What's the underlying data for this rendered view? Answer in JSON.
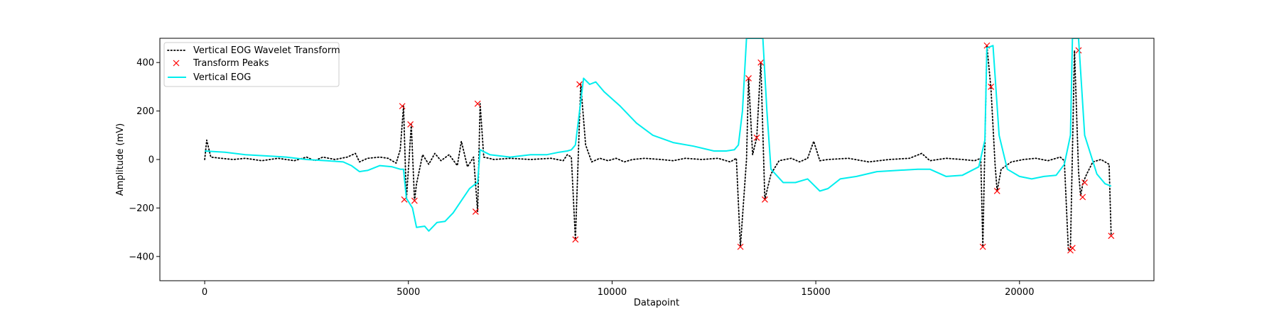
{
  "chart_data": {
    "type": "line",
    "xlabel": "Datapoint",
    "ylabel": "Amplitude (mV)",
    "xlim": [
      -1100,
      23300
    ],
    "ylim": [
      -500,
      500
    ],
    "x_ticks": [
      0,
      5000,
      10000,
      15000,
      20000
    ],
    "y_ticks": [
      -400,
      -200,
      0,
      200,
      400
    ],
    "grid": false,
    "legend_position": "upper-left",
    "series": [
      {
        "name": "Vertical EOG Wavelet Transform",
        "style": "dotted",
        "color": "#000000",
        "points": [
          [
            0,
            0
          ],
          [
            50,
            80
          ],
          [
            150,
            10
          ],
          [
            400,
            5
          ],
          [
            700,
            0
          ],
          [
            1000,
            5
          ],
          [
            1400,
            -5
          ],
          [
            1800,
            5
          ],
          [
            2200,
            -5
          ],
          [
            2500,
            10
          ],
          [
            2700,
            -5
          ],
          [
            2900,
            10
          ],
          [
            3200,
            0
          ],
          [
            3500,
            10
          ],
          [
            3700,
            25
          ],
          [
            3800,
            -10
          ],
          [
            4000,
            5
          ],
          [
            4300,
            10
          ],
          [
            4500,
            5
          ],
          [
            4700,
            -15
          ],
          [
            4800,
            40
          ],
          [
            4880,
            220
          ],
          [
            4950,
            -165
          ],
          [
            5020,
            10
          ],
          [
            5070,
            145
          ],
          [
            5150,
            -170
          ],
          [
            5200,
            -100
          ],
          [
            5350,
            20
          ],
          [
            5500,
            -20
          ],
          [
            5650,
            25
          ],
          [
            5800,
            -5
          ],
          [
            6000,
            20
          ],
          [
            6200,
            -25
          ],
          [
            6300,
            75
          ],
          [
            6450,
            -30
          ],
          [
            6600,
            10
          ],
          [
            6700,
            -215
          ],
          [
            6760,
            230
          ],
          [
            6850,
            10
          ],
          [
            7100,
            0
          ],
          [
            7500,
            5
          ],
          [
            8000,
            0
          ],
          [
            8500,
            5
          ],
          [
            8800,
            -5
          ],
          [
            8900,
            20
          ],
          [
            9000,
            10
          ],
          [
            9100,
            -330
          ],
          [
            9230,
            310
          ],
          [
            9350,
            60
          ],
          [
            9500,
            -10
          ],
          [
            9700,
            5
          ],
          [
            9900,
            -5
          ],
          [
            10100,
            5
          ],
          [
            10300,
            -10
          ],
          [
            10500,
            0
          ],
          [
            10800,
            5
          ],
          [
            11200,
            0
          ],
          [
            11500,
            -5
          ],
          [
            11800,
            5
          ],
          [
            12200,
            0
          ],
          [
            12600,
            5
          ],
          [
            12900,
            -10
          ],
          [
            13050,
            5
          ],
          [
            13150,
            -360
          ],
          [
            13300,
            0
          ],
          [
            13350,
            335
          ],
          [
            13450,
            20
          ],
          [
            13550,
            90
          ],
          [
            13650,
            400
          ],
          [
            13750,
            -165
          ],
          [
            13900,
            -60
          ],
          [
            14100,
            -5
          ],
          [
            14400,
            5
          ],
          [
            14600,
            -10
          ],
          [
            14800,
            5
          ],
          [
            14950,
            75
          ],
          [
            15100,
            -5
          ],
          [
            15300,
            0
          ],
          [
            15800,
            5
          ],
          [
            16300,
            -10
          ],
          [
            16800,
            0
          ],
          [
            17300,
            5
          ],
          [
            17600,
            25
          ],
          [
            17800,
            -5
          ],
          [
            18200,
            5
          ],
          [
            18600,
            0
          ],
          [
            18900,
            -5
          ],
          [
            19050,
            5
          ],
          [
            19100,
            -360
          ],
          [
            19200,
            470
          ],
          [
            19300,
            290
          ],
          [
            19400,
            -20
          ],
          [
            19450,
            -130
          ],
          [
            19550,
            -40
          ],
          [
            19800,
            -10
          ],
          [
            20100,
            0
          ],
          [
            20400,
            5
          ],
          [
            20700,
            -5
          ],
          [
            21000,
            10
          ],
          [
            21100,
            -5
          ],
          [
            21200,
            -375
          ],
          [
            21250,
            -365
          ],
          [
            21350,
            450
          ],
          [
            21450,
            -50
          ],
          [
            21500,
            -150
          ],
          [
            21560,
            -95
          ],
          [
            21650,
            -60
          ],
          [
            21800,
            -10
          ],
          [
            22000,
            0
          ],
          [
            22200,
            -20
          ],
          [
            22250,
            -315
          ]
        ]
      },
      {
        "name": "Transform Peaks",
        "style": "markers",
        "color": "#ff0000",
        "points": [
          [
            4850,
            220
          ],
          [
            4900,
            -165
          ],
          [
            5050,
            145
          ],
          [
            5150,
            -170
          ],
          [
            6650,
            -215
          ],
          [
            6700,
            230
          ],
          [
            9100,
            -330
          ],
          [
            9200,
            310
          ],
          [
            13150,
            -360
          ],
          [
            13350,
            335
          ],
          [
            13550,
            90
          ],
          [
            13650,
            400
          ],
          [
            13750,
            -165
          ],
          [
            19100,
            -360
          ],
          [
            19200,
            470
          ],
          [
            19300,
            300
          ],
          [
            19450,
            -130
          ],
          [
            21250,
            -375
          ],
          [
            21300,
            -365
          ],
          [
            21450,
            450
          ],
          [
            21550,
            -155
          ],
          [
            21600,
            -95
          ],
          [
            22250,
            -315
          ]
        ]
      },
      {
        "name": "Vertical EOG",
        "style": "solid",
        "color": "#00eeee",
        "points": [
          [
            0,
            35
          ],
          [
            500,
            30
          ],
          [
            1000,
            20
          ],
          [
            1500,
            15
          ],
          [
            2000,
            10
          ],
          [
            2500,
            0
          ],
          [
            3000,
            -5
          ],
          [
            3400,
            -10
          ],
          [
            3600,
            -25
          ],
          [
            3800,
            -50
          ],
          [
            4000,
            -45
          ],
          [
            4300,
            -25
          ],
          [
            4600,
            -30
          ],
          [
            4800,
            -40
          ],
          [
            4880,
            -40
          ],
          [
            4950,
            -160
          ],
          [
            5100,
            -200
          ],
          [
            5200,
            -280
          ],
          [
            5400,
            -275
          ],
          [
            5500,
            -295
          ],
          [
            5700,
            -260
          ],
          [
            5900,
            -255
          ],
          [
            6100,
            -220
          ],
          [
            6300,
            -170
          ],
          [
            6500,
            -120
          ],
          [
            6650,
            -100
          ],
          [
            6700,
            -95
          ],
          [
            6760,
            40
          ],
          [
            7000,
            20
          ],
          [
            7500,
            10
          ],
          [
            8000,
            20
          ],
          [
            8400,
            20
          ],
          [
            8700,
            30
          ],
          [
            8900,
            35
          ],
          [
            9000,
            40
          ],
          [
            9100,
            60
          ],
          [
            9300,
            335
          ],
          [
            9450,
            310
          ],
          [
            9600,
            320
          ],
          [
            9800,
            280
          ],
          [
            10200,
            220
          ],
          [
            10600,
            150
          ],
          [
            11000,
            100
          ],
          [
            11500,
            70
          ],
          [
            12000,
            55
          ],
          [
            12500,
            35
          ],
          [
            12800,
            35
          ],
          [
            13000,
            40
          ],
          [
            13100,
            60
          ],
          [
            13200,
            200
          ],
          [
            13300,
            500
          ],
          [
            13700,
            500
          ],
          [
            13800,
            200
          ],
          [
            13900,
            -40
          ],
          [
            14200,
            -95
          ],
          [
            14500,
            -95
          ],
          [
            14800,
            -80
          ],
          [
            15100,
            -130
          ],
          [
            15300,
            -120
          ],
          [
            15600,
            -80
          ],
          [
            16000,
            -70
          ],
          [
            16500,
            -50
          ],
          [
            17000,
            -45
          ],
          [
            17500,
            -40
          ],
          [
            17800,
            -40
          ],
          [
            18200,
            -70
          ],
          [
            18600,
            -65
          ],
          [
            19000,
            -30
          ],
          [
            19150,
            80
          ],
          [
            19200,
            460
          ],
          [
            19350,
            470
          ],
          [
            19500,
            100
          ],
          [
            19700,
            -40
          ],
          [
            20000,
            -70
          ],
          [
            20300,
            -80
          ],
          [
            20600,
            -70
          ],
          [
            20900,
            -65
          ],
          [
            21100,
            -20
          ],
          [
            21250,
            100
          ],
          [
            21300,
            500
          ],
          [
            21450,
            500
          ],
          [
            21600,
            100
          ],
          [
            21900,
            -60
          ],
          [
            22100,
            -100
          ],
          [
            22250,
            -110
          ]
        ]
      }
    ]
  }
}
